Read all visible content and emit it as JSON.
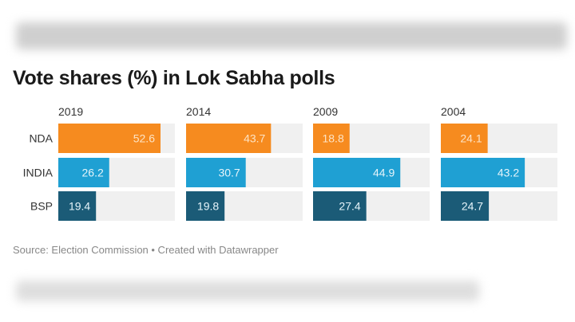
{
  "chart_data": {
    "type": "bar",
    "title": "Vote shares (%) in Lok Sabha polls",
    "panels": [
      "2019",
      "2014",
      "2009",
      "2004"
    ],
    "categories": [
      "NDA",
      "INDIA",
      "BSP"
    ],
    "values": {
      "2019": [
        52.6,
        26.2,
        19.4
      ],
      "2014": [
        43.7,
        30.7,
        19.8
      ],
      "2009": [
        18.8,
        44.9,
        27.4
      ],
      "2004": [
        24.1,
        43.2,
        24.7
      ]
    },
    "colors": {
      "NDA": "#f68b1f",
      "INDIA": "#1fa0d3",
      "BSP": "#1b5b77",
      "track": "#f0f0f0"
    },
    "xlim": [
      0,
      60
    ],
    "grid": false
  },
  "source": "Source: Election Commission • Created with Datawrapper"
}
